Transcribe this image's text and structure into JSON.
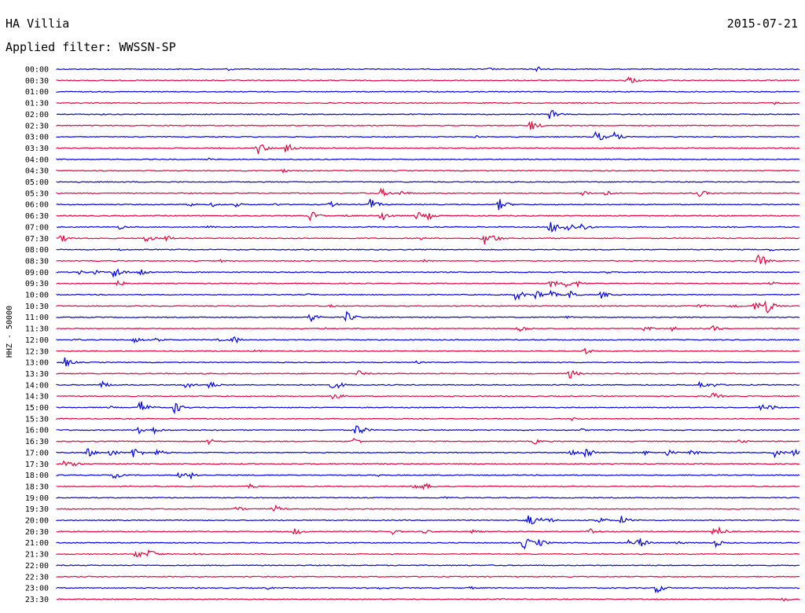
{
  "header": {
    "station": "HA Villia",
    "date": "2015-07-21",
    "filter": "Applied filter: WWSSN-SP"
  },
  "chart_data": {
    "type": "helicorder",
    "ylabel": "HHZ - 50000",
    "row_colors": [
      "#0000e6",
      "#e8003c"
    ],
    "rows": [
      {
        "label": "00:00",
        "events": [
          [
            290,
            2
          ],
          [
            622,
            2
          ],
          [
            684,
            4
          ]
        ]
      },
      {
        "label": "00:30",
        "events": [
          [
            798,
            7
          ],
          [
            260,
            1
          ],
          [
            990,
            1
          ]
        ]
      },
      {
        "label": "01:00",
        "events": []
      },
      {
        "label": "01:30",
        "events": [
          [
            985,
            2
          ]
        ]
      },
      {
        "label": "02:00",
        "events": [
          [
            700,
            9
          ],
          [
            130,
            1
          ],
          [
            620,
            1
          ]
        ]
      },
      {
        "label": "02:30",
        "events": [
          [
            675,
            8
          ],
          [
            300,
            1
          ]
        ]
      },
      {
        "label": "03:00",
        "events": [
          [
            758,
            8
          ],
          [
            780,
            7
          ],
          [
            605,
            2
          ]
        ]
      },
      {
        "label": "03:30",
        "events": [
          [
            328,
            9
          ],
          [
            363,
            9
          ],
          [
            280,
            1
          ],
          [
            940,
            1
          ]
        ]
      },
      {
        "label": "04:00",
        "events": [
          [
            265,
            2
          ],
          [
            620,
            1
          ]
        ]
      },
      {
        "label": "04:30",
        "events": [
          [
            358,
            3
          ]
        ]
      },
      {
        "label": "05:00",
        "events": [
          [
            100,
            1
          ]
        ]
      },
      {
        "label": "05:30",
        "events": [
          [
            485,
            6
          ],
          [
            510,
            4
          ],
          [
            740,
            5
          ],
          [
            770,
            4
          ],
          [
            890,
            5
          ]
        ]
      },
      {
        "label": "06:00",
        "events": [
          [
            470,
            9
          ],
          [
            635,
            8
          ],
          [
            240,
            3
          ],
          [
            270,
            3
          ],
          [
            300,
            3
          ],
          [
            420,
            4
          ],
          [
            350,
            2
          ]
        ]
      },
      {
        "label": "06:30",
        "events": [
          [
            395,
            7
          ],
          [
            485,
            8
          ],
          [
            530,
            6
          ],
          [
            545,
            5
          ],
          [
            440,
            2
          ]
        ]
      },
      {
        "label": "07:00",
        "events": [
          [
            700,
            10
          ],
          [
            720,
            8
          ],
          [
            740,
            6
          ],
          [
            152,
            3
          ],
          [
            265,
            2
          ]
        ]
      },
      {
        "label": "07:30",
        "events": [
          [
            78,
            5
          ],
          [
            185,
            5
          ],
          [
            210,
            5
          ],
          [
            615,
            9
          ],
          [
            625,
            7
          ],
          [
            535,
            2
          ]
        ]
      },
      {
        "label": "08:00",
        "events": [
          [
            150,
            2
          ],
          [
            980,
            2
          ]
        ]
      },
      {
        "label": "08:30",
        "events": [
          [
            965,
            10
          ],
          [
            540,
            2
          ],
          [
            280,
            2
          ]
        ]
      },
      {
        "label": "09:00",
        "events": [
          [
            145,
            9
          ],
          [
            178,
            6
          ],
          [
            100,
            3
          ],
          [
            120,
            3
          ],
          [
            770,
            2
          ]
        ]
      },
      {
        "label": "09:30",
        "events": [
          [
            700,
            6
          ],
          [
            720,
            5
          ],
          [
            735,
            4
          ],
          [
            980,
            3
          ],
          [
            150,
            4
          ]
        ]
      },
      {
        "label": "10:00",
        "events": [
          [
            656,
            8
          ],
          [
            682,
            7
          ],
          [
            700,
            5
          ],
          [
            725,
            6
          ],
          [
            765,
            5
          ],
          [
            390,
            2
          ]
        ]
      },
      {
        "label": "10:30",
        "events": [
          [
            975,
            10
          ],
          [
            960,
            7
          ],
          [
            930,
            4
          ],
          [
            890,
            4
          ],
          [
            420,
            2
          ]
        ]
      },
      {
        "label": "11:00",
        "events": [
          [
            395,
            7
          ],
          [
            440,
            8
          ],
          [
            720,
            2
          ]
        ]
      },
      {
        "label": "11:30",
        "events": [
          [
            660,
            6
          ],
          [
            820,
            4
          ],
          [
            855,
            3
          ],
          [
            907,
            4
          ],
          [
            410,
            2
          ]
        ]
      },
      {
        "label": "12:00",
        "events": [
          [
            295,
            7
          ],
          [
            170,
            5
          ],
          [
            200,
            4
          ],
          [
            275,
            3
          ],
          [
            95,
            2
          ]
        ]
      },
      {
        "label": "12:30",
        "events": [
          [
            743,
            5
          ],
          [
            325,
            2
          ]
        ]
      },
      {
        "label": "13:00",
        "events": [
          [
            82,
            7
          ],
          [
            530,
            2
          ]
        ]
      },
      {
        "label": "13:30",
        "events": [
          [
            724,
            7
          ],
          [
            455,
            5
          ],
          [
            900,
            1
          ]
        ]
      },
      {
        "label": "14:00",
        "events": [
          [
            130,
            5
          ],
          [
            235,
            6
          ],
          [
            265,
            6
          ],
          [
            420,
            5
          ],
          [
            430,
            4
          ],
          [
            890,
            6
          ],
          [
            910,
            3
          ]
        ]
      },
      {
        "label": "14:30",
        "events": [
          [
            420,
            5
          ],
          [
            905,
            6
          ],
          [
            430,
            3
          ]
        ]
      },
      {
        "label": "15:00",
        "events": [
          [
            178,
            10
          ],
          [
            222,
            8
          ],
          [
            968,
            5
          ],
          [
            980,
            4
          ],
          [
            140,
            2
          ]
        ]
      },
      {
        "label": "15:30",
        "events": [
          [
            728,
            3
          ]
        ]
      },
      {
        "label": "16:00",
        "events": [
          [
            453,
            10
          ],
          [
            173,
            9
          ],
          [
            195,
            5
          ],
          [
            740,
            2
          ],
          [
            805,
            2
          ]
        ]
      },
      {
        "label": "16:30",
        "events": [
          [
            265,
            5
          ],
          [
            450,
            5
          ],
          [
            680,
            4
          ],
          [
            940,
            3
          ]
        ]
      },
      {
        "label": "17:00",
        "events": [
          [
            110,
            7
          ],
          [
            140,
            6
          ],
          [
            170,
            8
          ],
          [
            200,
            5
          ],
          [
            725,
            6
          ],
          [
            745,
            9
          ],
          [
            820,
            3
          ],
          [
            848,
            5
          ],
          [
            878,
            5
          ],
          [
            985,
            6
          ],
          [
            1010,
            6
          ]
        ]
      },
      {
        "label": "17:30",
        "events": [
          [
            82,
            5
          ],
          [
            92,
            4
          ]
        ]
      },
      {
        "label": "18:00",
        "events": [
          [
            145,
            5
          ],
          [
            228,
            5
          ],
          [
            243,
            5
          ],
          [
            480,
            2
          ]
        ]
      },
      {
        "label": "18:30",
        "events": [
          [
            525,
            7
          ],
          [
            540,
            5
          ],
          [
            318,
            3
          ]
        ]
      },
      {
        "label": "19:00",
        "events": [
          [
            565,
            2
          ]
        ]
      },
      {
        "label": "19:30",
        "events": [
          [
            300,
            4
          ],
          [
            350,
            5
          ],
          [
            345,
            3
          ]
        ]
      },
      {
        "label": "20:00",
        "events": [
          [
            670,
            10
          ],
          [
            690,
            6
          ],
          [
            760,
            6
          ],
          [
            790,
            6
          ],
          [
            700,
            3
          ]
        ]
      },
      {
        "label": "20:30",
        "events": [
          [
            375,
            5
          ],
          [
            500,
            4
          ],
          [
            540,
            3
          ],
          [
            600,
            4
          ],
          [
            750,
            5
          ],
          [
            915,
            6
          ],
          [
            905,
            4
          ]
        ]
      },
      {
        "label": "21:00",
        "events": [
          [
            666,
            9
          ],
          [
            685,
            6
          ],
          [
            812,
            8
          ],
          [
            800,
            4
          ],
          [
            860,
            3
          ],
          [
            910,
            5
          ]
        ]
      },
      {
        "label": "21:30",
        "events": [
          [
            172,
            6
          ],
          [
            190,
            7
          ],
          [
            245,
            4
          ]
        ]
      },
      {
        "label": "22:00",
        "events": []
      },
      {
        "label": "22:30",
        "events": []
      },
      {
        "label": "23:00",
        "events": [
          [
            835,
            7
          ],
          [
            598,
            2
          ],
          [
            480,
            2
          ],
          [
            340,
            2
          ]
        ]
      },
      {
        "label": "23:30",
        "events": [
          [
            995,
            4
          ],
          [
            640,
            1
          ]
        ]
      }
    ]
  }
}
